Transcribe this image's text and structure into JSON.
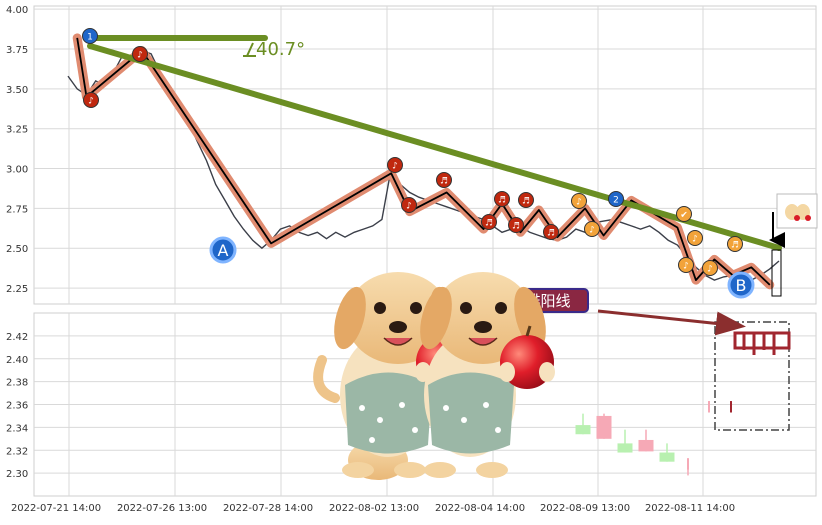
{
  "chart_data": [
    {
      "type": "line",
      "panel": "price",
      "ylim": [
        2.15,
        4.02
      ],
      "yticks": [
        "4.00",
        "3.75",
        "3.50",
        "3.25",
        "3.00",
        "2.75",
        "2.50",
        "2.25"
      ],
      "series": [
        {
          "values": [
            3.58,
            3.5,
            3.46,
            3.55,
            3.52,
            3.61,
            3.72,
            3.7,
            3.74,
            3.72,
            3.6,
            3.5,
            3.42,
            3.3,
            3.17,
            3.05,
            2.9,
            2.8,
            2.7,
            2.62,
            2.55,
            2.5,
            2.55,
            2.62,
            2.64,
            2.6,
            2.58,
            2.6,
            2.56,
            2.6,
            2.57,
            2.6,
            2.62,
            2.64,
            2.68,
            3.0,
            2.9,
            2.85,
            2.82,
            2.8,
            2.78,
            2.76,
            2.74,
            2.72,
            2.7,
            2.68,
            2.64,
            2.6,
            2.62,
            2.64,
            2.6,
            2.58,
            2.56,
            2.55,
            2.57,
            2.62,
            2.6,
            2.66,
            2.67,
            2.68,
            2.66,
            2.64,
            2.62,
            2.64,
            2.6,
            2.55,
            2.52,
            2.45,
            2.38,
            2.33,
            2.3,
            2.32,
            2.33,
            2.31,
            2.3,
            2.33,
            2.37,
            2.42
          ]
        }
      ],
      "markers": [
        "1",
        "♪",
        "♪",
        "A",
        "♪",
        "♪",
        "♬",
        "♬",
        "♬",
        "♬",
        "♬",
        "♬",
        "♪",
        "♪",
        "2",
        "✔",
        "♪",
        "♪",
        "♪",
        "♬",
        "B"
      ],
      "annotation": "40.7°"
    },
    {
      "type": "candlestick",
      "panel": "volume",
      "ylim": [
        2.28,
        2.44
      ],
      "yticks": [
        "2.42",
        "2.40",
        "2.38",
        "2.36",
        "2.34",
        "2.32",
        "2.30"
      ],
      "candles": [
        {
          "o": 2.334,
          "c": 2.342,
          "h": 2.352,
          "l": 2.334,
          "dir": "up"
        },
        {
          "o": 2.35,
          "c": 2.33,
          "h": 2.352,
          "l": 2.33,
          "dir": "down"
        },
        {
          "o": 2.326,
          "c": 2.318,
          "h": 2.338,
          "l": 2.318,
          "dir": "up"
        },
        {
          "o": 2.329,
          "c": 2.319,
          "h": 2.338,
          "l": 2.319,
          "dir": "down"
        },
        {
          "o": 2.318,
          "c": 2.31,
          "h": 2.326,
          "l": 2.31,
          "dir": "up"
        },
        {
          "o": 2.313,
          "c": 2.303,
          "h": 2.313,
          "l": 2.298,
          "dir": "down"
        },
        {
          "o": 2.363,
          "c": 2.353,
          "h": 2.363,
          "l": 2.353,
          "dir": "down"
        },
        {
          "o": 2.363,
          "c": 2.353,
          "h": 2.363,
          "l": 2.353,
          "dir": "down"
        }
      ],
      "label": "排阳线"
    }
  ],
  "xaxis": {
    "labels": [
      "2022-07-21 14:00",
      "2022-07-26 13:00",
      "2022-07-28 14:00",
      "2022-08-02 13:00",
      "2022-08-04 14:00",
      "2022-08-09 13:00",
      "2022-08-11 14:00"
    ]
  },
  "colors": {
    "trend": "#6b8e23",
    "zigzag": "#e08b70",
    "price": "#3b3f49",
    "marker_red": "#c0280f",
    "marker_orange": "#f2a33a",
    "marker_blue": "#1f66c9",
    "up_candle": "#b8f0b0",
    "down_candle": "#f6a9b6",
    "annotation_box": "#7a1f2b",
    "arrow": "#8b2e2e"
  }
}
